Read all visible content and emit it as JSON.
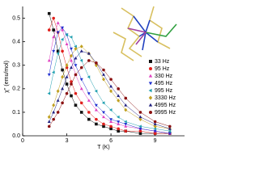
{
  "chart_data": {
    "type": "line",
    "y_label": "χ'' (emu/mol)",
    "x_label": "T (K)",
    "x": [
      1.8,
      2.1,
      2.4,
      2.7,
      3.0,
      3.3,
      3.6,
      4.0,
      4.5,
      5.0,
      5.5,
      6.0,
      6.5,
      7.0,
      8.0,
      9.0,
      10.0
    ],
    "series": [
      {
        "name": "33 Hz",
        "color": "#111111",
        "marker": "square",
        "values": [
          0.52,
          0.45,
          0.36,
          0.28,
          0.22,
          0.17,
          0.13,
          0.1,
          0.07,
          0.05,
          0.04,
          0.03,
          0.02,
          0.02,
          0.01,
          0.01,
          0.01
        ]
      },
      {
        "name": "95 Hz",
        "color": "#e0201c",
        "marker": "circle",
        "values": [
          0.45,
          0.5,
          0.44,
          0.36,
          0.29,
          0.23,
          0.18,
          0.14,
          0.1,
          0.07,
          0.05,
          0.04,
          0.03,
          0.02,
          0.02,
          0.01,
          0.01
        ]
      },
      {
        "name": "330 Hz",
        "color": "#e040c0",
        "marker": "triangle-up",
        "values": [
          0.32,
          0.42,
          0.48,
          0.45,
          0.39,
          0.32,
          0.26,
          0.2,
          0.15,
          0.11,
          0.08,
          0.06,
          0.05,
          0.04,
          0.03,
          0.02,
          0.01
        ]
      },
      {
        "name": "495 Hz",
        "color": "#2030d0",
        "marker": "triangle-down",
        "values": [
          0.26,
          0.36,
          0.44,
          0.46,
          0.43,
          0.37,
          0.3,
          0.24,
          0.18,
          0.13,
          0.1,
          0.07,
          0.06,
          0.05,
          0.03,
          0.02,
          0.01
        ]
      },
      {
        "name": "995 Hz",
        "color": "#20a0b0",
        "marker": "triangle-left",
        "values": [
          0.18,
          0.27,
          0.35,
          0.41,
          0.43,
          0.42,
          0.38,
          0.32,
          0.25,
          0.19,
          0.14,
          0.11,
          0.08,
          0.06,
          0.04,
          0.03,
          0.02
        ]
      },
      {
        "name": "3330 Hz",
        "color": "#c0a020",
        "marker": "diamond",
        "values": [
          0.08,
          0.13,
          0.19,
          0.25,
          0.3,
          0.34,
          0.37,
          0.38,
          0.35,
          0.3,
          0.24,
          0.19,
          0.15,
          0.11,
          0.07,
          0.04,
          0.03
        ]
      },
      {
        "name": "4995 Hz",
        "color": "#202080",
        "marker": "triangle-up",
        "values": [
          0.06,
          0.1,
          0.15,
          0.2,
          0.25,
          0.29,
          0.33,
          0.36,
          0.35,
          0.31,
          0.26,
          0.21,
          0.17,
          0.13,
          0.08,
          0.05,
          0.03
        ]
      },
      {
        "name": "9995 Hz",
        "color": "#8a1010",
        "marker": "circle",
        "values": [
          0.04,
          0.07,
          0.1,
          0.14,
          0.18,
          0.22,
          0.26,
          0.29,
          0.32,
          0.31,
          0.28,
          0.24,
          0.2,
          0.16,
          0.1,
          0.06,
          0.04
        ]
      }
    ],
    "xlim": [
      0,
      11
    ],
    "xticks": [
      0,
      3,
      6,
      9
    ],
    "ylim": [
      0,
      0.55
    ],
    "yticks": [
      {
        "value": 0,
        "label": "0.0"
      },
      0.1,
      0.2,
      0.3,
      0.4,
      0.5
    ],
    "legend": "right"
  }
}
